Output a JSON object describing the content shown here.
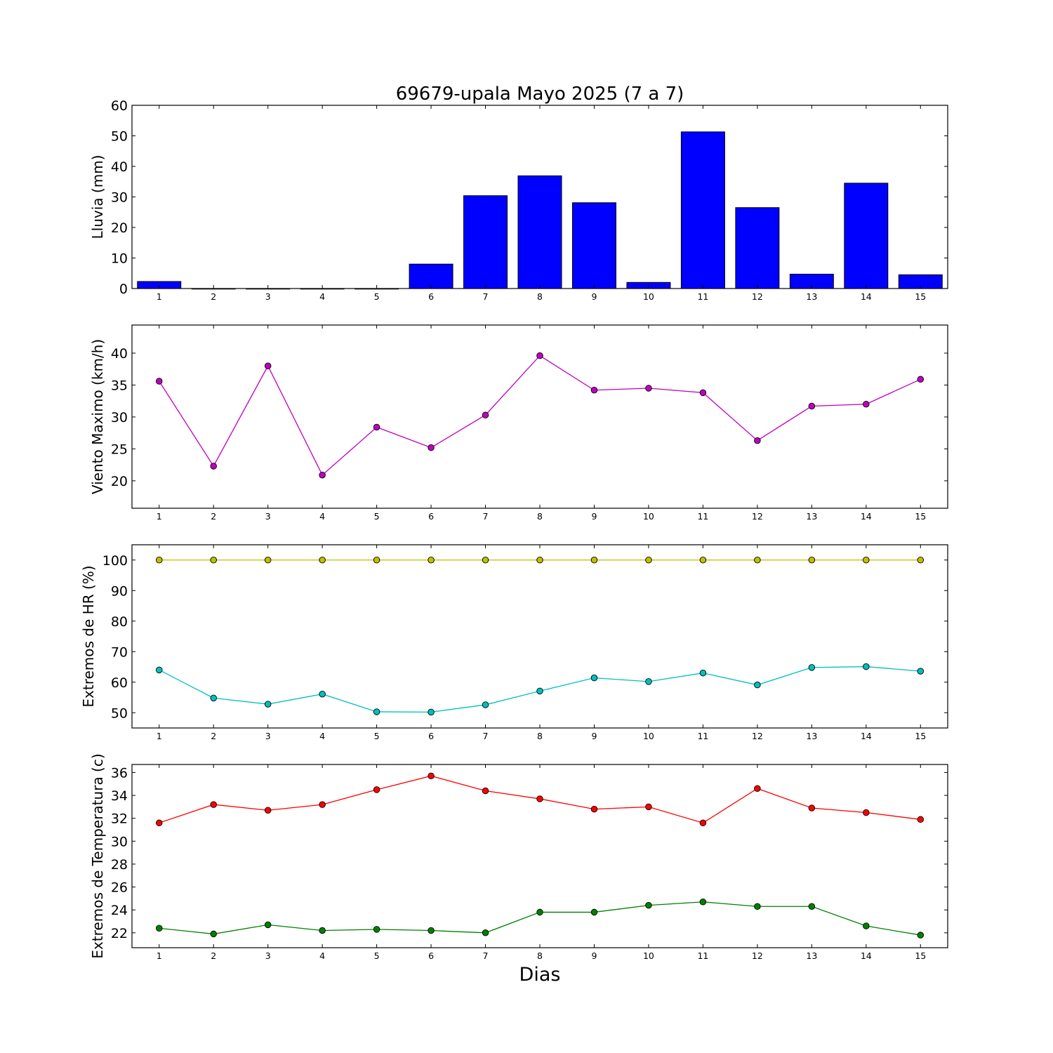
{
  "chart_data": [
    {
      "type": "bar",
      "title": "69679-upala Mayo 2025  (7 a 7)",
      "ylabel": "Lluvia (mm)",
      "x": [
        1,
        2,
        3,
        4,
        5,
        6,
        7,
        8,
        9,
        10,
        11,
        12,
        13,
        14,
        15
      ],
      "ylim": [
        0,
        60
      ],
      "yticks": [
        0,
        10,
        20,
        30,
        40,
        50,
        60
      ],
      "series": [
        {
          "values": [
            2.3,
            0,
            0,
            0,
            0,
            8.0,
            30.4,
            36.9,
            28.1,
            2.0,
            51.3,
            26.5,
            4.7,
            34.5,
            4.5
          ],
          "color": "#0000ff"
        }
      ]
    },
    {
      "type": "line",
      "ylabel": "Viento Maximo (km/h)",
      "x": [
        1,
        2,
        3,
        4,
        5,
        6,
        7,
        8,
        9,
        10,
        11,
        12,
        13,
        14,
        15
      ],
      "ylim": [
        15.7,
        44.4
      ],
      "yticks": [
        20,
        25,
        30,
        35,
        40
      ],
      "series": [
        {
          "values": [
            35.6,
            22.3,
            38.0,
            20.9,
            28.4,
            25.2,
            30.3,
            39.6,
            34.2,
            34.5,
            33.8,
            26.3,
            31.7,
            32.0,
            35.9
          ],
          "color": "#bf00bf"
        }
      ]
    },
    {
      "type": "line",
      "ylabel": "Extremos de HR (%)",
      "x": [
        1,
        2,
        3,
        4,
        5,
        6,
        7,
        8,
        9,
        10,
        11,
        12,
        13,
        14,
        15
      ],
      "ylim": [
        45,
        105
      ],
      "yticks": [
        50,
        60,
        70,
        80,
        90,
        100
      ],
      "series": [
        {
          "values": [
            100,
            100,
            100,
            100,
            100,
            100,
            100,
            100,
            100,
            100,
            100,
            100,
            100,
            100,
            100
          ],
          "color": "#bfbf00"
        },
        {
          "values": [
            64.0,
            54.8,
            52.8,
            56.1,
            50.3,
            50.2,
            52.6,
            57.1,
            61.4,
            60.2,
            63.0,
            59.1,
            64.8,
            65.1,
            63.6
          ],
          "color": "#00bfbf"
        }
      ]
    },
    {
      "type": "line",
      "ylabel": "Extremos de Temperatura (c)",
      "xlabel": "Dias",
      "x": [
        1,
        2,
        3,
        4,
        5,
        6,
        7,
        8,
        9,
        10,
        11,
        12,
        13,
        14,
        15
      ],
      "ylim": [
        20.7,
        36.7
      ],
      "yticks": [
        22,
        24,
        26,
        28,
        30,
        32,
        34,
        36
      ],
      "series": [
        {
          "values": [
            31.6,
            33.2,
            32.7,
            33.2,
            34.5,
            35.7,
            34.4,
            33.7,
            32.8,
            33.0,
            31.6,
            34.6,
            32.9,
            32.5,
            31.9
          ],
          "color": "#ff0000"
        },
        {
          "values": [
            22.4,
            21.9,
            22.7,
            22.2,
            22.3,
            22.2,
            22.0,
            23.8,
            23.8,
            24.4,
            24.7,
            24.3,
            24.3,
            22.6,
            21.8
          ],
          "color": "#008000"
        }
      ]
    }
  ]
}
